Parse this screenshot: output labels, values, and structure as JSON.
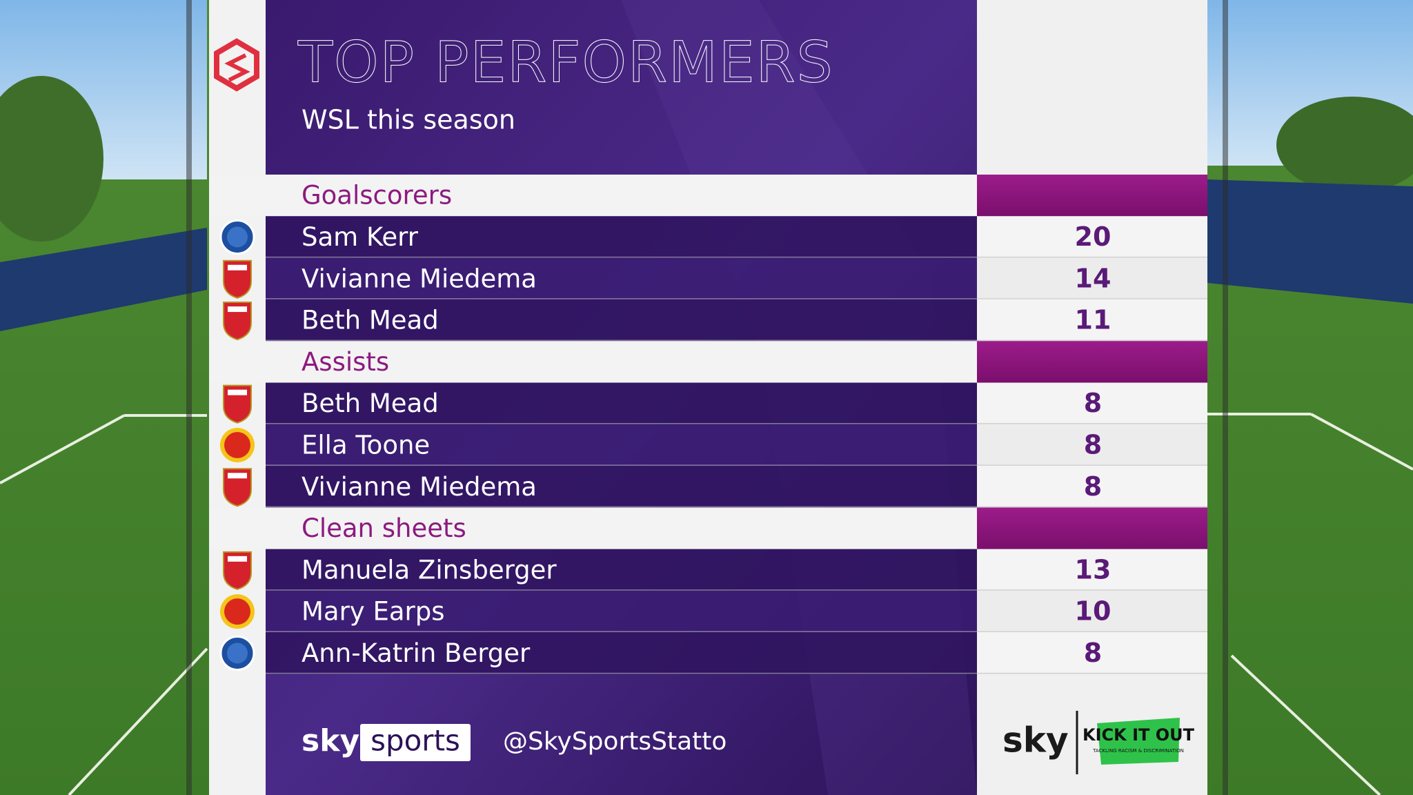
{
  "header": {
    "title": "TOP PERFORMERS",
    "subtitle": "WSL this season"
  },
  "sections": [
    {
      "title": "Goalscorers",
      "rows": [
        {
          "name": "Sam Kerr",
          "value": 20
        },
        {
          "name": "Vivianne Miedema",
          "value": 14
        },
        {
          "name": "Beth Mead",
          "value": 11
        }
      ]
    },
    {
      "title": "Assists",
      "rows": [
        {
          "name": "Beth Mead",
          "value": 8
        },
        {
          "name": "Ella Toone",
          "value": 8
        },
        {
          "name": "Vivianne Miedema",
          "value": 8
        }
      ]
    },
    {
      "title": "Clean sheets",
      "rows": [
        {
          "name": "Manuela Zinsberger",
          "value": 13
        },
        {
          "name": "Mary Earps",
          "value": 10
        },
        {
          "name": "Ann-Katrin Berger",
          "value": 8
        }
      ]
    }
  ],
  "footer": {
    "brand_sky": "sky",
    "brand_sports": "sports",
    "handle": "@SkySportsStatto",
    "sky_logo": "sky",
    "kio": "KICK IT OUT",
    "kio_tagline": "TACKLING RACISM & DISCRIMINATION"
  }
}
